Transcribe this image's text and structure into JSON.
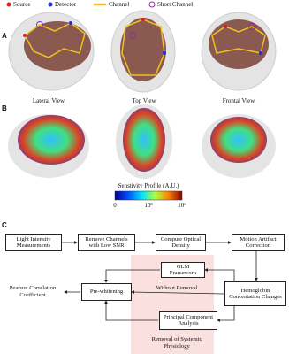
{
  "panel_a": {
    "label": "A",
    "legend": [
      "Source",
      "Detector",
      "Channel",
      "Short Channel"
    ],
    "views": [
      "Lateral View",
      "Top View",
      "Frontal View"
    ]
  },
  "panel_b": {
    "label": "B",
    "colorbar": {
      "title": "Senstivity Profile (A.U.)",
      "ticks": [
        "0",
        "10³",
        "10⁶"
      ]
    }
  },
  "panel_c": {
    "label": "C",
    "nodes": [
      "Light Intensity Measurements",
      "Remove Channels with Low SNR",
      "Compute Optical Density",
      "Motion Artifact Correction",
      "Hemoglobin Concentation Changes",
      "GLM Framework",
      "Principal Component Analysis",
      "Pre-whitening",
      "Pearson Correlation Coefficient"
    ],
    "edge_label": "Without Removal",
    "region_label": "Removal of Systemic Physiology"
  }
}
